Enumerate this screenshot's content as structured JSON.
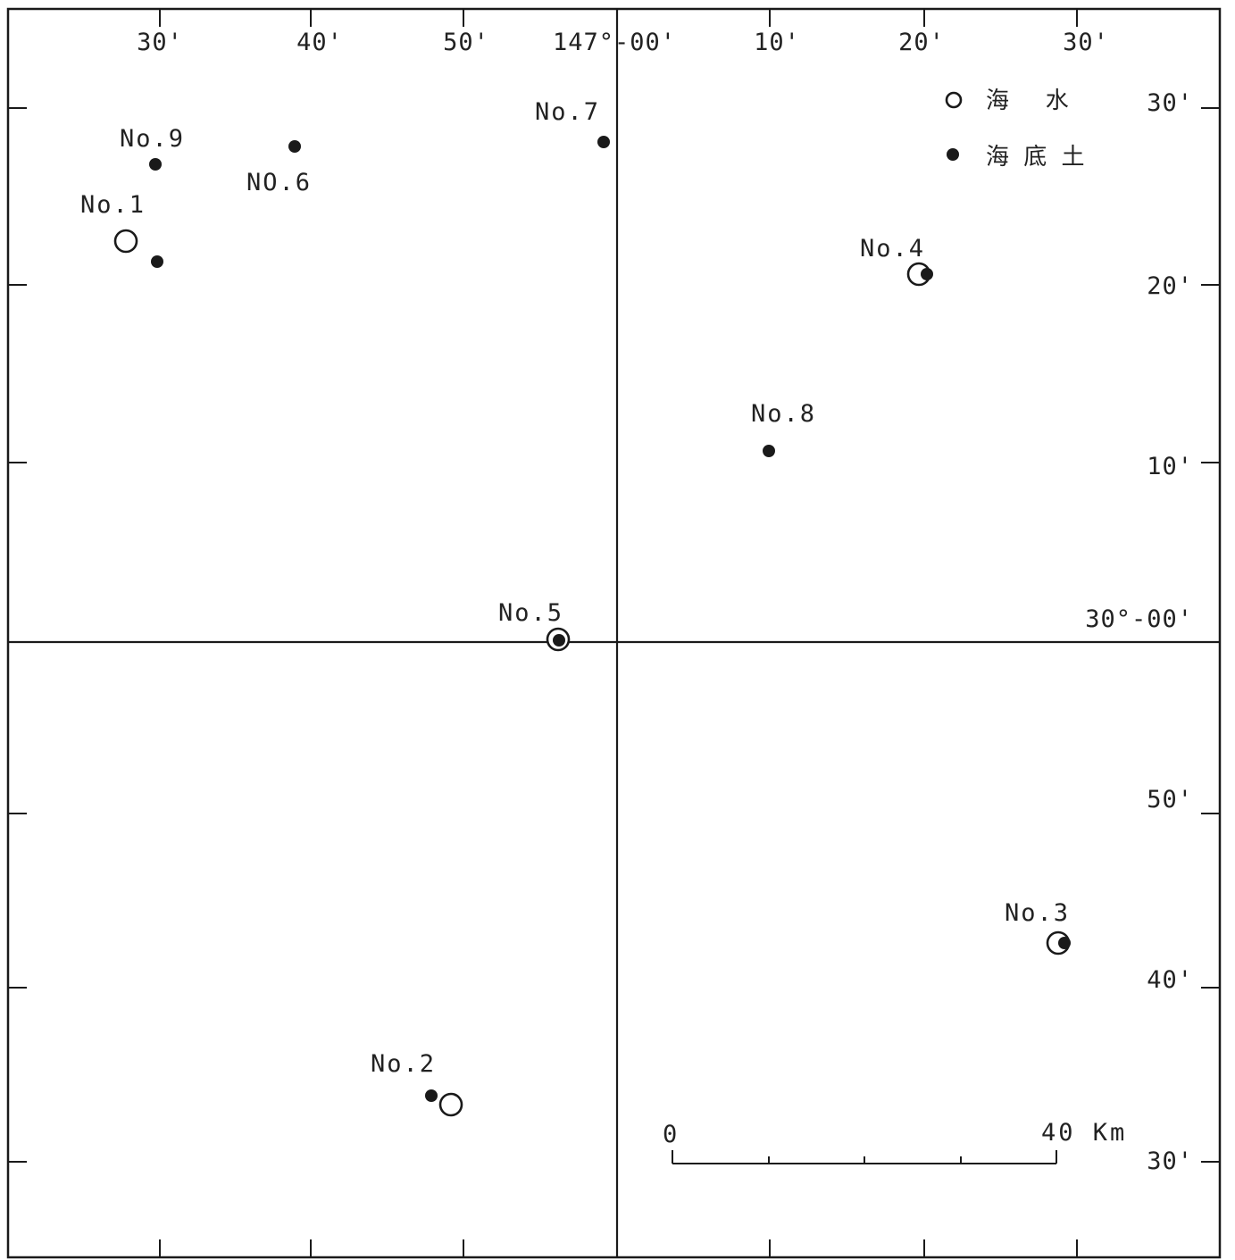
{
  "legend": {
    "seawater_label": "海   水",
    "sediment_label": "海 底 土",
    "seawater_icon": "open-circle-icon",
    "sediment_icon": "filled-dot-icon"
  },
  "longitude_labels": [
    "30'",
    "40'",
    "50'",
    "147°-00'",
    "10'",
    "20'",
    "30'"
  ],
  "latitude_labels": [
    "30'",
    "20'",
    "10'",
    "30°-00'",
    "50'",
    "40'",
    "30'"
  ],
  "stations": [
    {
      "label": "No.1",
      "samples": [
        "seawater",
        "sediment"
      ]
    },
    {
      "label": "No.2",
      "samples": [
        "sediment",
        "seawater"
      ]
    },
    {
      "label": "No.3",
      "samples": [
        "seawater",
        "sediment"
      ]
    },
    {
      "label": "No.4",
      "samples": [
        "seawater",
        "sediment"
      ]
    },
    {
      "label": "No.5",
      "samples": [
        "seawater",
        "sediment"
      ]
    },
    {
      "label": "NO.6",
      "samples": [
        "sediment"
      ]
    },
    {
      "label": "No.7",
      "samples": [
        "sediment"
      ]
    },
    {
      "label": "No.8",
      "samples": [
        "sediment"
      ]
    },
    {
      "label": "No.9",
      "samples": [
        "sediment"
      ]
    }
  ],
  "scale_bar": {
    "start_label": "0",
    "end_label": "40 Km"
  }
}
